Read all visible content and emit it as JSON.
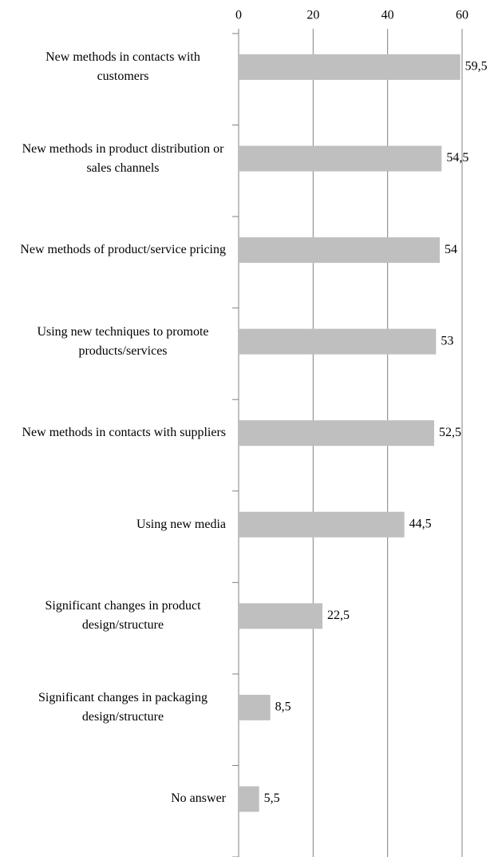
{
  "chart_data": {
    "type": "bar",
    "orientation": "horizontal",
    "categories": [
      "New methods in contacts with customers",
      "New methods in product distribution or sales channels",
      "New methods of product/service pricing",
      "Using new techniques to promote products/services",
      "New methods in contacts with suppliers",
      "Using new media",
      "Significant changes in product design/structure",
      "Significant changes in packaging design/structure",
      "No answer"
    ],
    "values": [
      59.5,
      54.5,
      54,
      53,
      52.5,
      44.5,
      22.5,
      8.5,
      5.5
    ],
    "value_labels": [
      "59,5",
      "54,5",
      "54",
      "53",
      "52,5",
      "44,5",
      "22,5",
      "8,5",
      "5,5"
    ],
    "color": "#bfbfbf",
    "xlim": [
      0,
      60
    ],
    "xticks": [
      0,
      20,
      40,
      60
    ],
    "grid": true
  }
}
